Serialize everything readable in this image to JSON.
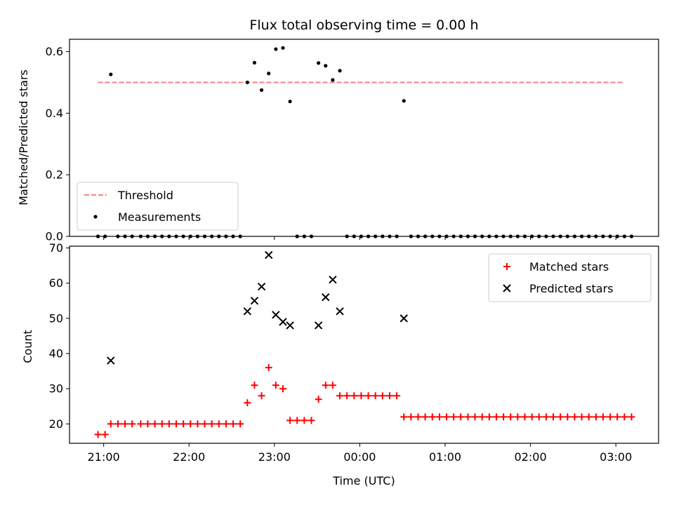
{
  "chart_data": [
    {
      "type": "scatter",
      "title": "Flux total observing time = 0.00 h",
      "ylabel": "Matched/Predicted stars",
      "xlabel": "",
      "ylim": [
        0,
        0.64
      ],
      "xlim": [
        "20:36",
        "03:30"
      ],
      "yticks": [
        "0.0",
        "0.2",
        "0.4",
        "0.6"
      ],
      "ytick_values": [
        0,
        0.2,
        0.4,
        0.6
      ],
      "legend_position": "lower left",
      "series": [
        {
          "name": "Threshold",
          "style": "dashed-line",
          "color": "#ff7f7f",
          "points": [
            [
              "20:56",
              0.5
            ],
            [
              "03:06",
              0.5
            ]
          ]
        },
        {
          "name": "Measurements",
          "style": "dot",
          "color": "#000000",
          "points": [
            [
              "20:56",
              0.0
            ],
            [
              "21:01",
              0.0
            ],
            [
              "21:05",
              0.526
            ],
            [
              "21:10",
              0.0
            ],
            [
              "21:15",
              0.0
            ],
            [
              "21:20",
              0.0
            ],
            [
              "21:26",
              0.0
            ],
            [
              "21:31",
              0.0
            ],
            [
              "21:36",
              0.0
            ],
            [
              "21:41",
              0.0
            ],
            [
              "21:46",
              0.0
            ],
            [
              "21:51",
              0.0
            ],
            [
              "21:56",
              0.0
            ],
            [
              "22:01",
              0.0
            ],
            [
              "22:06",
              0.0
            ],
            [
              "22:11",
              0.0
            ],
            [
              "22:16",
              0.0
            ],
            [
              "22:21",
              0.0
            ],
            [
              "22:26",
              0.0
            ],
            [
              "22:31",
              0.0
            ],
            [
              "22:36",
              0.0
            ],
            [
              "22:41",
              0.5
            ],
            [
              "22:46",
              0.564
            ],
            [
              "22:51",
              0.475
            ],
            [
              "22:56",
              0.529
            ],
            [
              "23:01",
              0.608
            ],
            [
              "23:06",
              0.612
            ],
            [
              "23:11",
              0.438
            ],
            [
              "23:16",
              0.0
            ],
            [
              "23:21",
              0.0
            ],
            [
              "23:26",
              0.0
            ],
            [
              "23:31",
              0.563
            ],
            [
              "23:36",
              0.554
            ],
            [
              "23:41",
              0.508
            ],
            [
              "23:46",
              0.538
            ],
            [
              "23:51",
              0.0
            ],
            [
              "23:56",
              0.0
            ],
            [
              "00:01",
              0.0
            ],
            [
              "00:06",
              0.0
            ],
            [
              "00:11",
              0.0
            ],
            [
              "00:16",
              0.0
            ],
            [
              "00:21",
              0.0
            ],
            [
              "00:26",
              0.0
            ],
            [
              "00:31",
              0.44
            ],
            [
              "00:36",
              0.0
            ],
            [
              "00:41",
              0.0
            ],
            [
              "00:46",
              0.0
            ],
            [
              "00:51",
              0.0
            ],
            [
              "00:56",
              0.0
            ],
            [
              "01:01",
              0.0
            ],
            [
              "01:06",
              0.0
            ],
            [
              "01:11",
              0.0
            ],
            [
              "01:16",
              0.0
            ],
            [
              "01:21",
              0.0
            ],
            [
              "01:26",
              0.0
            ],
            [
              "01:31",
              0.0
            ],
            [
              "01:36",
              0.0
            ],
            [
              "01:41",
              0.0
            ],
            [
              "01:46",
              0.0
            ],
            [
              "01:51",
              0.0
            ],
            [
              "01:56",
              0.0
            ],
            [
              "02:01",
              0.0
            ],
            [
              "02:06",
              0.0
            ],
            [
              "02:11",
              0.0
            ],
            [
              "02:16",
              0.0
            ],
            [
              "02:21",
              0.0
            ],
            [
              "02:26",
              0.0
            ],
            [
              "02:31",
              0.0
            ],
            [
              "02:36",
              0.0
            ],
            [
              "02:41",
              0.0
            ],
            [
              "02:46",
              0.0
            ],
            [
              "02:51",
              0.0
            ],
            [
              "02:56",
              0.0
            ],
            [
              "03:01",
              0.0
            ],
            [
              "03:06",
              0.0
            ],
            [
              "03:11",
              0.0
            ]
          ]
        }
      ]
    },
    {
      "type": "scatter",
      "title": "",
      "ylabel": "Count",
      "xlabel": "Time (UTC)",
      "ylim": [
        14.5,
        70.5
      ],
      "xlim": [
        "20:36",
        "03:30"
      ],
      "yticks": [
        "20",
        "30",
        "40",
        "50",
        "60",
        "70"
      ],
      "ytick_values": [
        20,
        30,
        40,
        50,
        60,
        70
      ],
      "xticks": [
        "21:00",
        "22:00",
        "23:00",
        "00:00",
        "01:00",
        "02:00",
        "03:00"
      ],
      "legend_position": "upper right",
      "series": [
        {
          "name": "Matched stars",
          "style": "plus",
          "color": "#ff0000",
          "points": [
            [
              "20:56",
              17
            ],
            [
              "21:01",
              17
            ],
            [
              "21:05",
              20
            ],
            [
              "21:10",
              20
            ],
            [
              "21:15",
              20
            ],
            [
              "21:20",
              20
            ],
            [
              "21:26",
              20
            ],
            [
              "21:31",
              20
            ],
            [
              "21:36",
              20
            ],
            [
              "21:41",
              20
            ],
            [
              "21:46",
              20
            ],
            [
              "21:51",
              20
            ],
            [
              "21:56",
              20
            ],
            [
              "22:01",
              20
            ],
            [
              "22:06",
              20
            ],
            [
              "22:11",
              20
            ],
            [
              "22:16",
              20
            ],
            [
              "22:21",
              20
            ],
            [
              "22:26",
              20
            ],
            [
              "22:31",
              20
            ],
            [
              "22:36",
              20
            ],
            [
              "22:41",
              26
            ],
            [
              "22:46",
              31
            ],
            [
              "22:51",
              28
            ],
            [
              "22:56",
              36
            ],
            [
              "23:01",
              31
            ],
            [
              "23:06",
              30
            ],
            [
              "23:11",
              21
            ],
            [
              "23:16",
              21
            ],
            [
              "23:21",
              21
            ],
            [
              "23:26",
              21
            ],
            [
              "23:31",
              27
            ],
            [
              "23:36",
              31
            ],
            [
              "23:41",
              31
            ],
            [
              "23:46",
              28
            ],
            [
              "23:51",
              28
            ],
            [
              "23:56",
              28
            ],
            [
              "00:01",
              28
            ],
            [
              "00:06",
              28
            ],
            [
              "00:11",
              28
            ],
            [
              "00:16",
              28
            ],
            [
              "00:21",
              28
            ],
            [
              "00:26",
              28
            ],
            [
              "00:31",
              22
            ],
            [
              "00:36",
              22
            ],
            [
              "00:41",
              22
            ],
            [
              "00:46",
              22
            ],
            [
              "00:51",
              22
            ],
            [
              "00:56",
              22
            ],
            [
              "01:01",
              22
            ],
            [
              "01:06",
              22
            ],
            [
              "01:11",
              22
            ],
            [
              "01:16",
              22
            ],
            [
              "01:21",
              22
            ],
            [
              "01:26",
              22
            ],
            [
              "01:31",
              22
            ],
            [
              "01:36",
              22
            ],
            [
              "01:41",
              22
            ],
            [
              "01:46",
              22
            ],
            [
              "01:51",
              22
            ],
            [
              "01:56",
              22
            ],
            [
              "02:01",
              22
            ],
            [
              "02:06",
              22
            ],
            [
              "02:11",
              22
            ],
            [
              "02:16",
              22
            ],
            [
              "02:21",
              22
            ],
            [
              "02:26",
              22
            ],
            [
              "02:31",
              22
            ],
            [
              "02:36",
              22
            ],
            [
              "02:41",
              22
            ],
            [
              "02:46",
              22
            ],
            [
              "02:51",
              22
            ],
            [
              "02:56",
              22
            ],
            [
              "03:01",
              22
            ],
            [
              "03:06",
              22
            ],
            [
              "03:11",
              22
            ]
          ]
        },
        {
          "name": "Predicted stars",
          "style": "x",
          "color": "#000000",
          "points": [
            [
              "21:05",
              38
            ],
            [
              "22:41",
              52
            ],
            [
              "22:46",
              55
            ],
            [
              "22:51",
              59
            ],
            [
              "22:56",
              68
            ],
            [
              "23:01",
              51
            ],
            [
              "23:06",
              49
            ],
            [
              "23:11",
              48
            ],
            [
              "23:31",
              48
            ],
            [
              "23:36",
              56
            ],
            [
              "23:41",
              61
            ],
            [
              "23:46",
              52
            ],
            [
              "00:31",
              50
            ]
          ]
        }
      ]
    }
  ]
}
